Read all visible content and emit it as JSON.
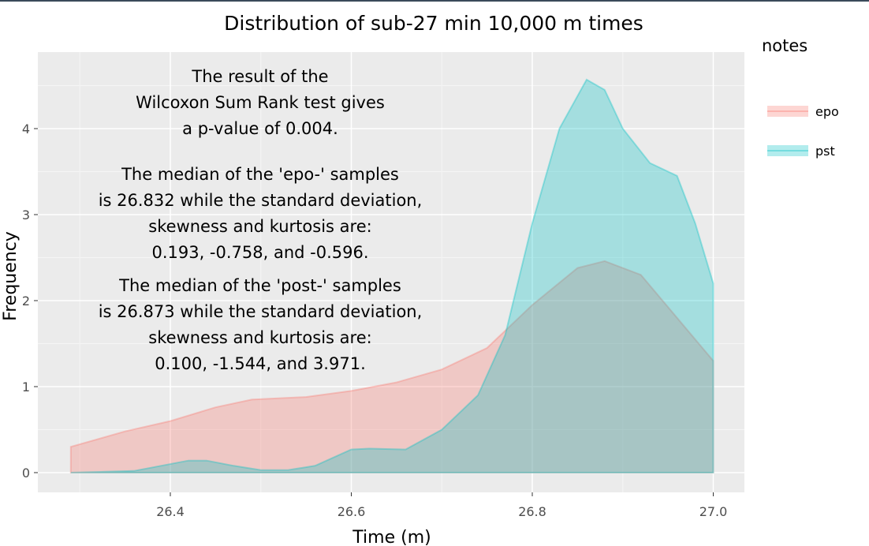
{
  "chart_data": {
    "type": "area",
    "title": "Distribution of sub-27 min 10,000 m times",
    "xlabel": "Time (m)",
    "ylabel": "Frequency",
    "xlim": [
      26.26,
      27.035
    ],
    "ylim": [
      -0.24,
      4.9
    ],
    "xticks": [
      26.4,
      26.6,
      26.8,
      27.0
    ],
    "xtick_labels": [
      "26.4",
      "26.6",
      "26.8",
      "27.0"
    ],
    "yticks": [
      0,
      1,
      2,
      3,
      4
    ],
    "ytick_labels": [
      "0",
      "1",
      "2",
      "3",
      "4"
    ],
    "grid": true,
    "legend": {
      "title": "notes",
      "placement": "right"
    },
    "series": [
      {
        "name": "epo",
        "color": "#F8766D",
        "x": [
          26.29,
          26.35,
          26.4,
          26.45,
          26.49,
          26.55,
          26.6,
          26.65,
          26.7,
          26.75,
          26.8,
          26.85,
          26.88,
          26.92,
          26.96,
          27.0
        ],
        "y": [
          0.3,
          0.48,
          0.6,
          0.76,
          0.85,
          0.88,
          0.95,
          1.05,
          1.2,
          1.45,
          1.95,
          2.38,
          2.46,
          2.3,
          1.8,
          1.3
        ]
      },
      {
        "name": "pst",
        "color": "#00BFC4",
        "x": [
          26.29,
          26.36,
          26.42,
          26.44,
          26.47,
          26.5,
          26.53,
          26.56,
          26.6,
          26.62,
          26.66,
          26.7,
          26.74,
          26.77,
          26.8,
          26.83,
          26.86,
          26.88,
          26.9,
          26.93,
          26.96,
          26.98,
          27.0
        ],
        "y": [
          0.0,
          0.02,
          0.14,
          0.14,
          0.08,
          0.03,
          0.03,
          0.08,
          0.27,
          0.28,
          0.27,
          0.5,
          0.9,
          1.6,
          2.9,
          4.0,
          4.57,
          4.45,
          4.0,
          3.6,
          3.45,
          2.9,
          2.2
        ]
      }
    ],
    "annotation": [
      "The result of the",
      "Wilcoxon Sum Rank test gives",
      "a p-value of 0.004.",
      "The median of the 'epo-' samples",
      "is 26.832 while the standard deviation,",
      "skewness and kurtosis are:",
      "0.193, -0.758, and -0.596.",
      "The median of the 'post-' samples",
      "is 26.873 while the standard deviation,",
      "skewness and kurtosis are:",
      "0.100, -1.544, and 3.971."
    ]
  }
}
